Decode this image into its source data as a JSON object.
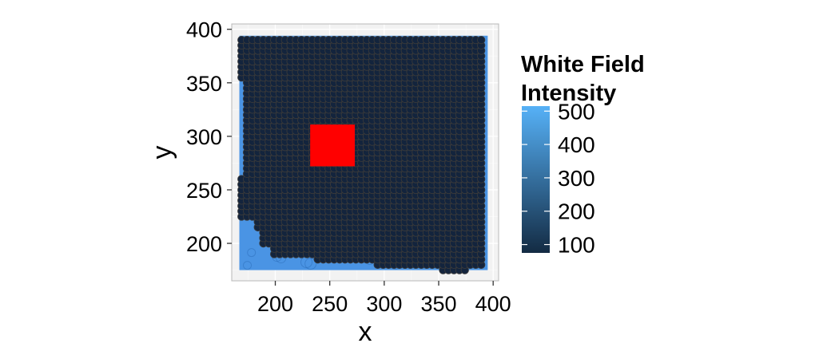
{
  "chart_data": {
    "type": "scatter",
    "title": "",
    "xlabel": "x",
    "ylabel": "y",
    "xlim": [
      160,
      405
    ],
    "ylim": [
      165,
      405
    ],
    "x_ticks": [
      200,
      250,
      300,
      350,
      400
    ],
    "y_ticks": [
      200,
      250,
      300,
      350,
      400
    ],
    "grid": true,
    "background_image": "white-field intensity image (blue tones)",
    "point_grid": {
      "x_start": 169,
      "x_end": 392,
      "y_start": 175,
      "y_end": 392,
      "step": 5,
      "left_edge_rows": [
        {
          "y_from": 175,
          "y_to": 200,
          "x_min": 199
        },
        {
          "y_from": 200,
          "y_to": 215,
          "x_min": 189
        },
        {
          "y_from": 215,
          "y_to": 225,
          "x_min": 184
        },
        {
          "y_from": 225,
          "y_to": 265,
          "x_min": 169
        },
        {
          "y_from": 265,
          "y_to": 355,
          "x_min": 174
        },
        {
          "y_from": 355,
          "y_to": 392,
          "x_min": 169
        }
      ],
      "bottom_edge_rows": [
        {
          "y_from": 175,
          "y_to": 180,
          "x_min": 354,
          "x_max": 375
        },
        {
          "y_from": 180,
          "y_to": 185,
          "x_min": 294,
          "x_max": 392
        },
        {
          "y_from": 185,
          "y_to": 190,
          "x_min": 239,
          "x_max": 392
        }
      ],
      "point_color": "#13243d",
      "point_outline": "#3a3a3a"
    },
    "highlight_region": {
      "x_min": 232,
      "x_max": 273,
      "y_min": 272,
      "y_max": 311,
      "color": "#ff0000"
    },
    "legend": {
      "title_lines": [
        "White Field",
        "Intensity"
      ],
      "labels": [
        "500",
        "400",
        "300",
        "200",
        "100"
      ],
      "values": [
        500,
        400,
        300,
        200,
        100
      ],
      "range": [
        75,
        515
      ],
      "low_color": "#132b43",
      "high_color": "#56b1f7",
      "placement": "right"
    }
  },
  "colors": {
    "panel_background": "#f2f2f2",
    "grid_major": "#ffffff",
    "image_light": "#4a94e4",
    "image_dark": "#2d6fbb"
  }
}
